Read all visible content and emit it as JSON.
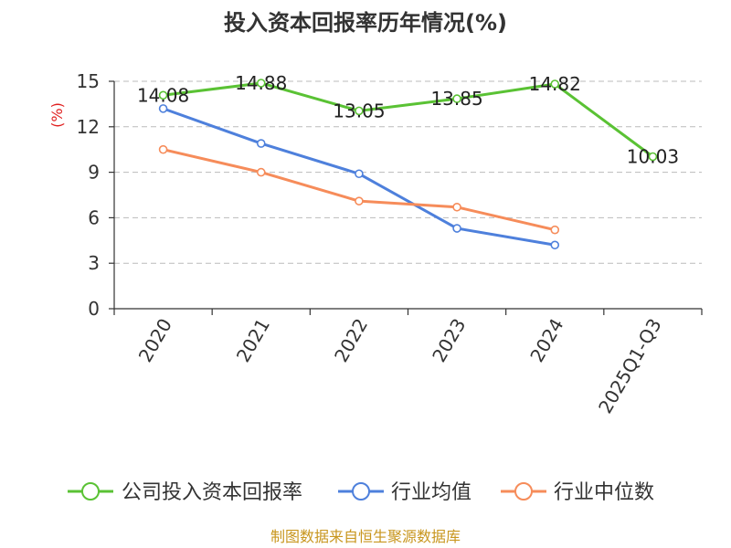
{
  "chart_data": {
    "type": "line",
    "title": "投入资本回报率历年情况(%)",
    "ylabel": "(%)",
    "xlabel": "",
    "categories": [
      "2020",
      "2021",
      "2022",
      "2023",
      "2024",
      "2025Q1-Q3"
    ],
    "ylim": [
      0,
      15
    ],
    "yticks": [
      0,
      3,
      6,
      9,
      12,
      15
    ],
    "grid": true,
    "legend_position": "bottom",
    "series": [
      {
        "name": "公司投入资本回报率",
        "color": "#5ac234",
        "values": [
          14.08,
          14.88,
          13.05,
          13.85,
          14.82,
          10.03
        ],
        "labels": [
          "14.08",
          "14.88",
          "13.05",
          "13.85",
          "14.82",
          "10.03"
        ]
      },
      {
        "name": "行业均值",
        "color": "#4e80dc",
        "values": [
          13.2,
          10.9,
          8.9,
          5.3,
          4.2,
          null
        ]
      },
      {
        "name": "行业中位数",
        "color": "#f68c5a",
        "values": [
          10.5,
          9.0,
          7.1,
          6.7,
          5.2,
          null
        ]
      }
    ],
    "source": "制图数据来自恒生聚源数据库"
  }
}
